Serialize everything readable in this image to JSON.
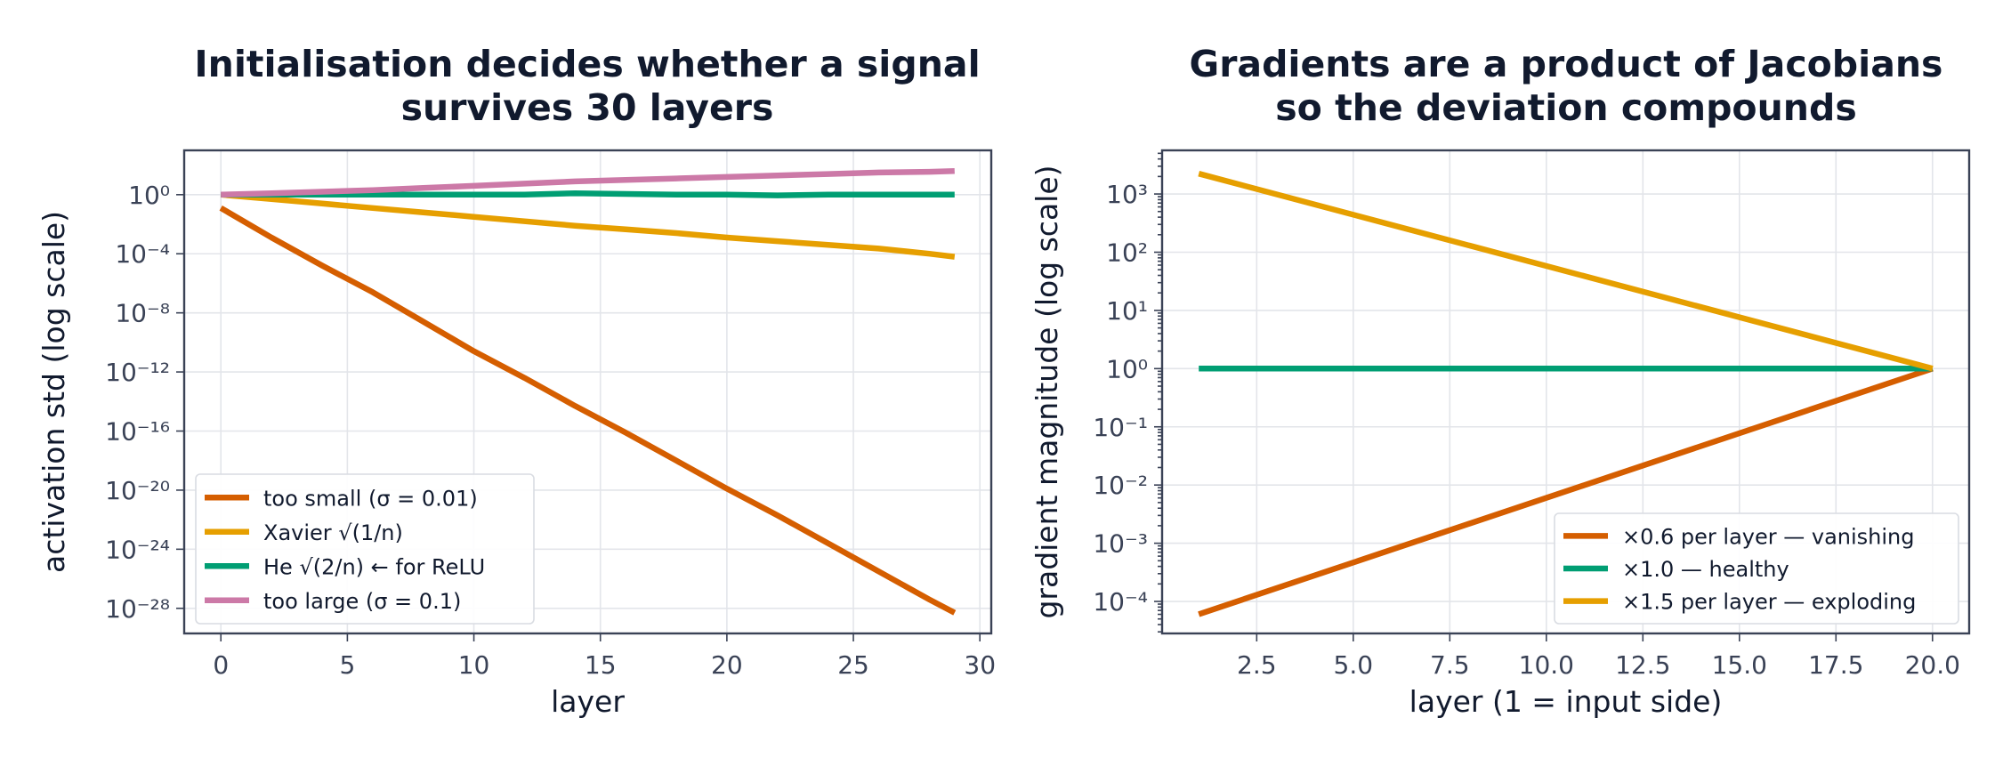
{
  "chart_data": [
    {
      "type": "line",
      "title": [
        "Initialisation decides whether a signal",
        "survives 30 layers"
      ],
      "xlabel": "layer",
      "ylabel": "activation std (log scale)",
      "xscale": "linear",
      "yscale": "log",
      "xlim": [
        -1.45,
        30.45
      ],
      "ylim_log10": [
        -29.7,
        3.0
      ],
      "xticks": [
        0,
        5,
        10,
        15,
        20,
        25,
        30
      ],
      "yticks_log10": [
        0,
        -4,
        -8,
        -12,
        -16,
        -20,
        -24,
        -28
      ],
      "grid": true,
      "legend_position": "lower-left",
      "series": [
        {
          "name": "too small (σ = 0.01)",
          "color": "#d55e00",
          "x": [
            0,
            2,
            4,
            6,
            8,
            10,
            12,
            14,
            16,
            18,
            20,
            22,
            24,
            26,
            28,
            29
          ],
          "y_log10": [
            -0.9,
            -2.9,
            -4.8,
            -6.6,
            -8.6,
            -10.6,
            -12.4,
            -14.3,
            -16.1,
            -18.0,
            -19.9,
            -21.7,
            -23.6,
            -25.5,
            -27.4,
            -28.3
          ]
        },
        {
          "name": "Xavier  √(1/n)",
          "color": "#e69f00",
          "x": [
            0,
            2,
            4,
            6,
            8,
            10,
            12,
            14,
            16,
            18,
            20,
            22,
            24,
            26,
            28,
            29
          ],
          "y_log10": [
            0.0,
            -0.3,
            -0.6,
            -0.9,
            -1.2,
            -1.5,
            -1.8,
            -2.1,
            -2.35,
            -2.6,
            -2.9,
            -3.15,
            -3.4,
            -3.65,
            -4.0,
            -4.2
          ]
        },
        {
          "name": "He  √(2/n)  ← for ReLU",
          "color": "#009e73",
          "x": [
            0,
            2,
            4,
            6,
            8,
            10,
            12,
            14,
            16,
            18,
            20,
            22,
            24,
            26,
            28,
            29
          ],
          "y_log10": [
            0.0,
            0.0,
            0.0,
            0.0,
            0.0,
            0.0,
            0.0,
            0.1,
            0.05,
            0.0,
            0.0,
            -0.05,
            0.0,
            0.0,
            0.0,
            0.0
          ]
        },
        {
          "name": "too large (σ = 0.1)",
          "color": "#cc79a7",
          "x": [
            0,
            2,
            4,
            6,
            8,
            10,
            12,
            14,
            16,
            18,
            20,
            22,
            24,
            26,
            28,
            29
          ],
          "y_log10": [
            0.0,
            0.1,
            0.2,
            0.3,
            0.45,
            0.6,
            0.75,
            0.9,
            1.0,
            1.1,
            1.2,
            1.3,
            1.4,
            1.5,
            1.55,
            1.6
          ]
        }
      ]
    },
    {
      "type": "line",
      "title": [
        "Gradients are a product of Jacobians",
        "so the deviation compounds"
      ],
      "xlabel": "layer (1 = input side)",
      "ylabel": "gradient magnitude (log scale)",
      "xscale": "linear",
      "yscale": "log",
      "xlim": [
        0.05,
        20.95
      ],
      "ylim_log10": [
        -4.55,
        3.75
      ],
      "xticks": [
        2.5,
        5.0,
        7.5,
        10.0,
        12.5,
        15.0,
        17.5,
        20.0
      ],
      "yticks_log10": [
        3,
        2,
        1,
        0,
        -1,
        -2,
        -3,
        -4
      ],
      "grid": true,
      "legend_position": "lower-right",
      "series": [
        {
          "name": "×0.6 per layer — vanishing",
          "color": "#d55e00",
          "x": [
            1,
            20
          ],
          "y_log10": [
            -4.22,
            0
          ]
        },
        {
          "name": "×1.0 — healthy",
          "color": "#009e73",
          "x": [
            1,
            20
          ],
          "y_log10": [
            0,
            0
          ]
        },
        {
          "name": "×1.5 per layer — exploding",
          "color": "#e69f00",
          "x": [
            1,
            20
          ],
          "y_log10": [
            3.35,
            0
          ]
        }
      ]
    }
  ]
}
